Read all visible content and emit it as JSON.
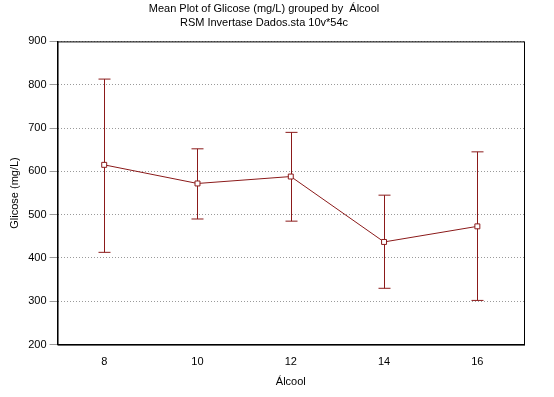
{
  "chart_data": {
    "type": "line",
    "title": "Mean Plot of Glicose (mg/L) grouped by  Álcool",
    "subtitle": "RSM Invertase Dados.sta 10v*54c",
    "x_label": "Álcool",
    "y_label": "Glicose (mg/L)",
    "categories": [
      "8",
      "10",
      "12",
      "14",
      "16"
    ],
    "values": [
      615,
      572,
      588,
      437,
      473
    ],
    "lower": [
      413,
      490,
      485,
      330,
      302
    ],
    "upper": [
      813,
      652,
      690,
      545,
      645
    ],
    "color": "#8b1a1a",
    "marker": "square",
    "line_style": "solid",
    "ylim": [
      200,
      900
    ],
    "yticks": [
      200,
      300,
      400,
      500,
      600,
      700,
      800,
      900
    ],
    "grid": true
  }
}
